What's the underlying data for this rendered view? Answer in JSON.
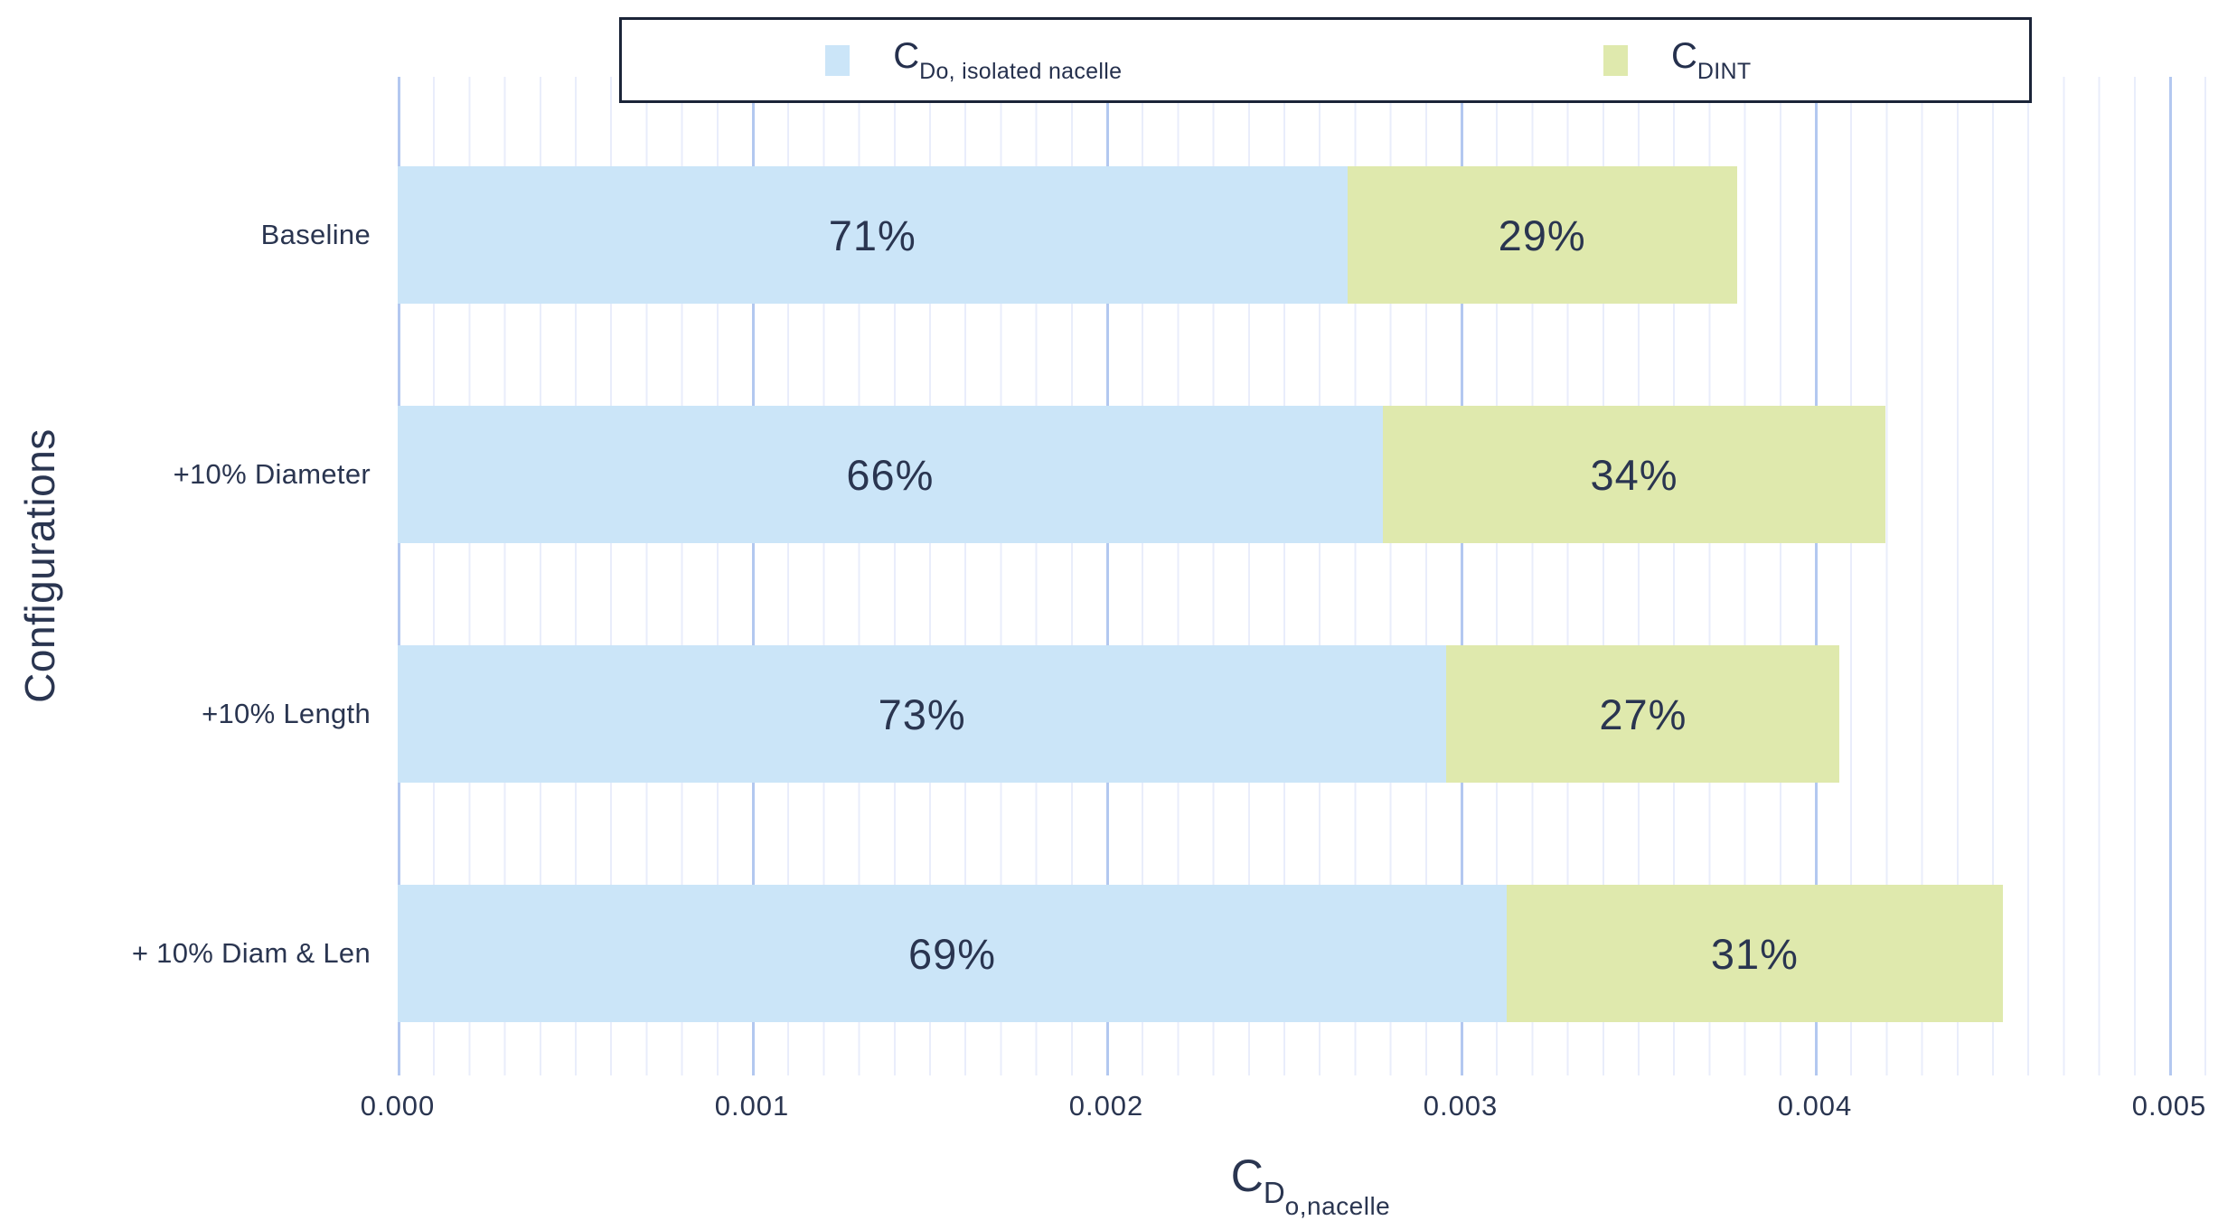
{
  "legend": {
    "items": [
      {
        "main": "C",
        "sub": "Do, isolated nacelle",
        "color": "#cbe5f8"
      },
      {
        "main": "C",
        "sub": "DINT",
        "color": "#dfe9ad"
      }
    ]
  },
  "chart_data": {
    "type": "bar",
    "orientation": "horizontal",
    "stacked": true,
    "title": "",
    "ylabel": "Configurations",
    "xlabel_main": "C",
    "xlabel_sub": "D",
    "xlabel_subsub": "o,nacelle",
    "categories": [
      "Baseline",
      "+10% Diameter",
      "+10% Length",
      "+ 10% Diam & Len"
    ],
    "series": [
      {
        "name": "C_Do, isolated nacelle",
        "color": "#cbe5f8",
        "values": [
          0.00268,
          0.00278,
          0.00296,
          0.00313
        ],
        "labels": [
          "71%",
          "66%",
          "73%",
          "69%"
        ]
      },
      {
        "name": "C_DINT",
        "color": "#dfe9ad",
        "values": [
          0.0011,
          0.00142,
          0.00111,
          0.0014
        ],
        "labels": [
          "29%",
          "34%",
          "27%",
          "31%"
        ]
      }
    ],
    "totals": [
      0.00378,
      0.0042,
      0.00407,
      0.00453
    ],
    "x_ticks": [
      "0.000",
      "0.001",
      "0.002",
      "0.003",
      "0.004",
      "0.005"
    ],
    "xlim": [
      0,
      0.005
    ],
    "grid": "minor-and-major-vertical",
    "legend_position": "top",
    "colors": {
      "ink": "#2a3550",
      "grid_major": "#b3c8f0",
      "grid_minor": "#e9edfb",
      "legend_border": "#1b2438"
    }
  }
}
